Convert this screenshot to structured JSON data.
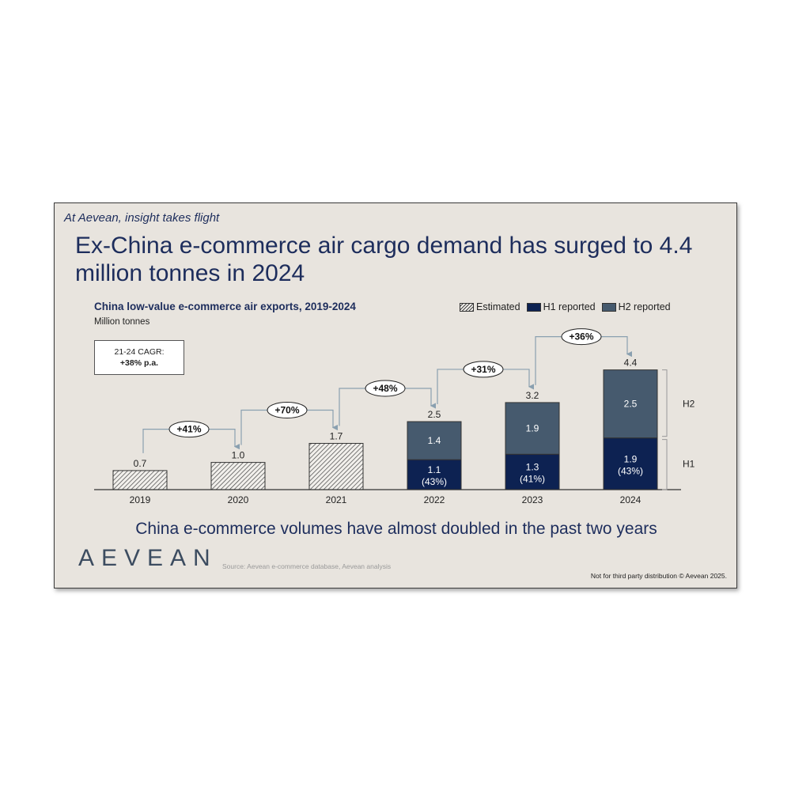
{
  "slide": {
    "tagline": "At Aevean, insight takes flight",
    "headline": "Ex-China e-commerce air cargo demand has surged to 4.4 million tonnes in 2024",
    "conclusion": "China e-commerce volumes have almost doubled in the past two years",
    "logo": "AEVEAN",
    "source": "Source: Aevean e-commerce database, Aevean analysis",
    "footer": "Not for third party distribution © Aevean 2025."
  },
  "callout": {
    "label": "21-24 CAGR:",
    "value": "+38% p.a."
  },
  "colors": {
    "h1": "#0d2252",
    "h2": "#465a6e",
    "estimated_bg": "#f2f0ec",
    "text": "#1d2d5c",
    "connector": "#8aa0b0"
  },
  "chart_data": {
    "type": "bar",
    "title": "China low-value e-commerce air exports, 2019-2024",
    "ylabel": "Million tonnes",
    "categories": [
      "2019",
      "2020",
      "2021",
      "2022",
      "2023",
      "2024"
    ],
    "legend": [
      "Estimated",
      "H1 reported",
      "H2 reported"
    ],
    "legend_position": "top-right",
    "stacked": true,
    "series": [
      {
        "name": "Estimated",
        "values": [
          0.7,
          1.0,
          1.7,
          null,
          null,
          null
        ]
      },
      {
        "name": "H1 reported",
        "values": [
          null,
          null,
          null,
          1.1,
          1.3,
          1.9
        ],
        "labels": [
          "",
          "",
          "",
          "1.1\n(43%)",
          "1.3\n(41%)",
          "1.9\n(43%)"
        ]
      },
      {
        "name": "H2 reported",
        "values": [
          null,
          null,
          null,
          1.4,
          1.9,
          2.5
        ]
      }
    ],
    "totals": [
      "0.7",
      "1.0",
      "1.7",
      "2.5",
      "3.2",
      "4.4"
    ],
    "growth": [
      "+41%",
      "+70%",
      "+48%",
      "+31%",
      "+36%"
    ],
    "bracket_labels": [
      "H2",
      "H1"
    ],
    "ylim": [
      0,
      4.6
    ],
    "grid": false
  }
}
